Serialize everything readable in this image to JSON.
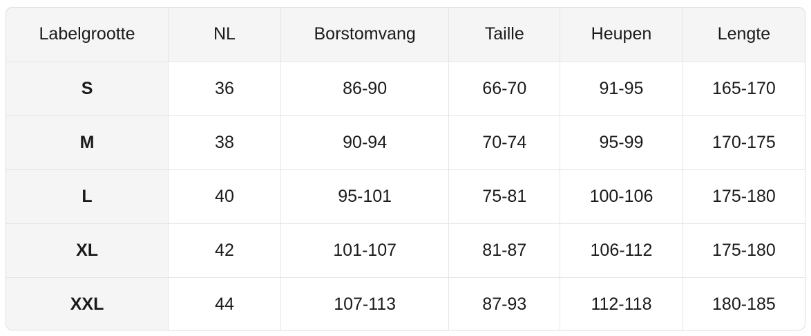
{
  "chart_data": {
    "type": "table",
    "title": "",
    "columns": [
      "Labelgrootte",
      "NL",
      "Borstomvang",
      "Taille",
      "Heupen",
      "Lengte"
    ],
    "rows": [
      [
        "S",
        "36",
        "86-90",
        "66-70",
        "91-95",
        "165-170"
      ],
      [
        "M",
        "38",
        "90-94",
        "70-74",
        "95-99",
        "170-175"
      ],
      [
        "L",
        "40",
        "95-101",
        "75-81",
        "100-106",
        "175-180"
      ],
      [
        "XL",
        "42",
        "101-107",
        "81-87",
        "106-112",
        "175-180"
      ],
      [
        "XXL",
        "44",
        "107-113",
        "87-93",
        "112-118",
        "180-185"
      ]
    ],
    "column_widths_pct": [
      20.29,
      14.08,
      21.07,
      13.9,
      15.37,
      15.28
    ],
    "colors": {
      "header_bg": "#f5f5f6",
      "row_label_bg": "#f5f5f6",
      "cell_bg": "#ffffff",
      "border": "#e5e5e6",
      "outer_border": "#dcdcdc",
      "text": "#1a1a1a",
      "page_bg": "#ffffff"
    }
  }
}
